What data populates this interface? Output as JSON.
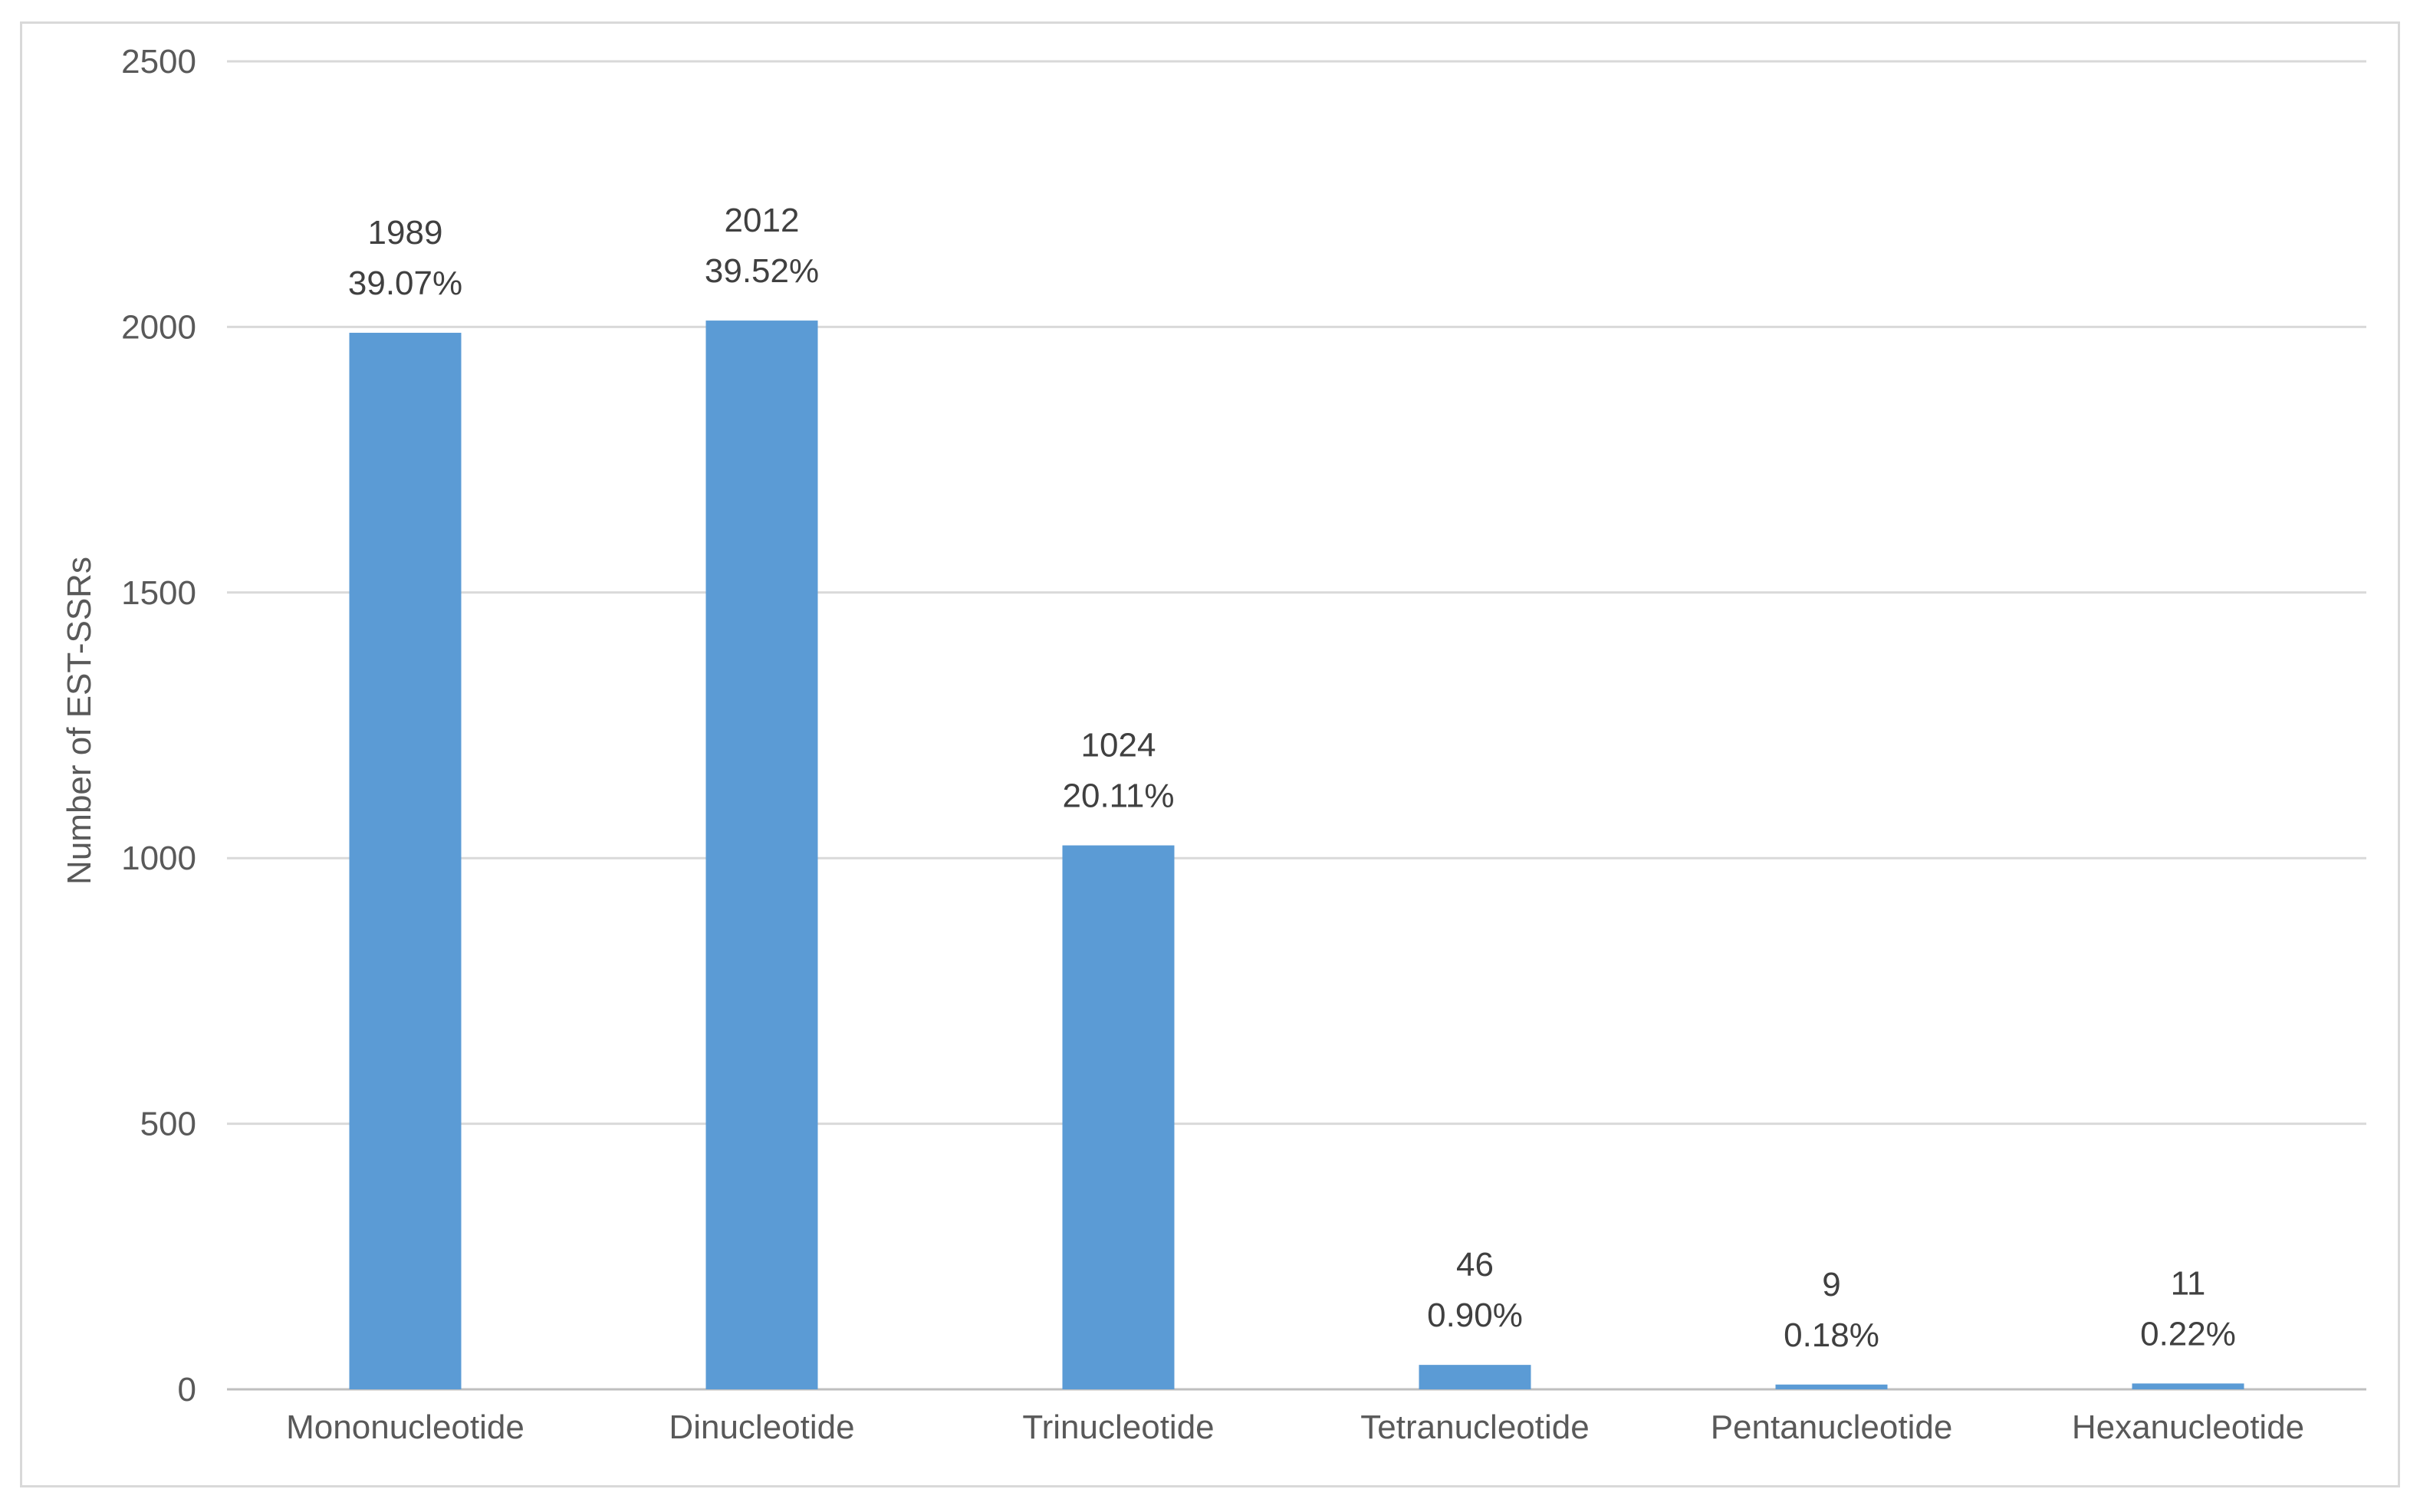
{
  "chart_data": {
    "type": "bar",
    "ylabel": "Number of EST-SSRs",
    "xlabel": "",
    "ylim": [
      0,
      2500
    ],
    "yticks": [
      0,
      500,
      1000,
      1500,
      2000,
      2500
    ],
    "grid": true,
    "categories": [
      "Mononucleotide",
      "Dinucleotide",
      "Trinucleotide",
      "Tetranucleotide",
      "Pentanucleotide",
      "Hexanucleotide"
    ],
    "values": [
      1989,
      2012,
      1024,
      46,
      9,
      11
    ],
    "value_labels": [
      "1989",
      "2012",
      "1024",
      "46",
      "9",
      "11"
    ],
    "percent_labels": [
      "39.07%",
      "39.52%",
      "20.11%",
      "0.90%",
      "0.18%",
      "0.22%"
    ],
    "colors": {
      "bar": "#5b9bd5",
      "grid": "#d9d9d9",
      "axis": "#bfbfbf"
    }
  }
}
